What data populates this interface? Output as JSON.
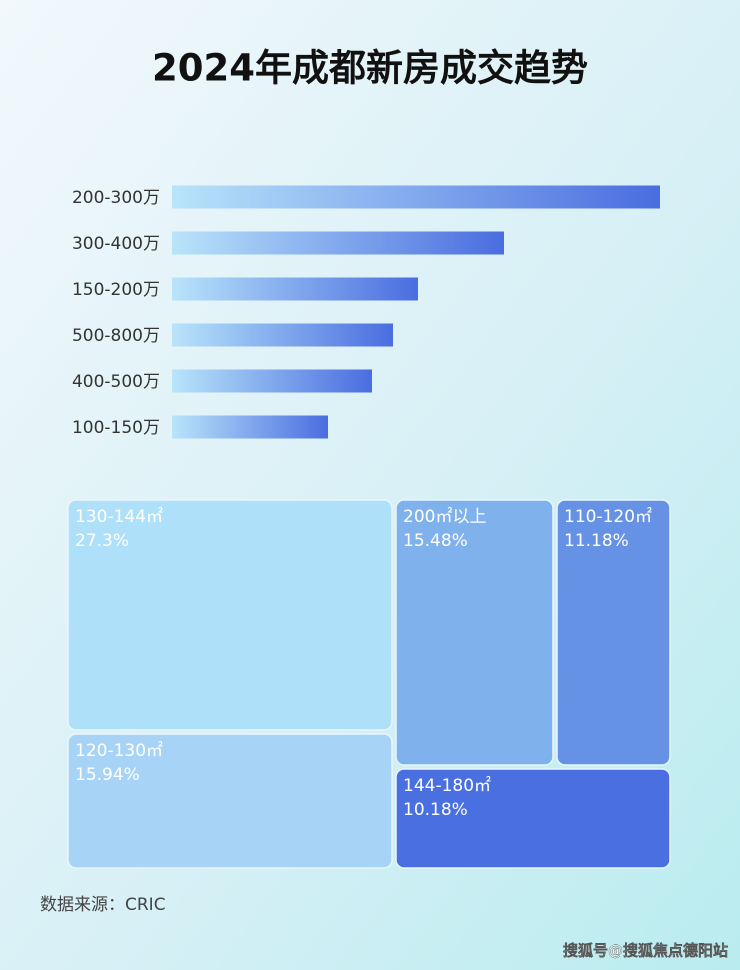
{
  "title": "2024年成都新房成交趋势",
  "chart_data": [
    {
      "type": "bar",
      "orientation": "horizontal",
      "categories": [
        "200-300万",
        "300-400万",
        "150-200万",
        "500-800万",
        "400-500万",
        "100-150万"
      ],
      "values": [
        488,
        332,
        246,
        221,
        200,
        156
      ],
      "color": "#4a6de0"
    },
    {
      "type": "treemap",
      "categories": [
        "130-144㎡",
        "200㎡以上",
        "110-120㎡",
        "120-130㎡",
        "144-180㎡"
      ],
      "values": [
        27.3,
        15.48,
        11.18,
        15.94,
        10.18
      ],
      "value_labels": [
        "27.3%",
        "15.48%",
        "11.18%",
        "15.94%",
        "10.18%"
      ],
      "colors": [
        "#aee0fa",
        "#7fb1ec",
        "#6692e6",
        "#a7d4f6",
        "#4a6fe0"
      ]
    }
  ],
  "source": "数据来源：CRIC",
  "watermark": "搜狐号@搜狐焦点德阳站"
}
